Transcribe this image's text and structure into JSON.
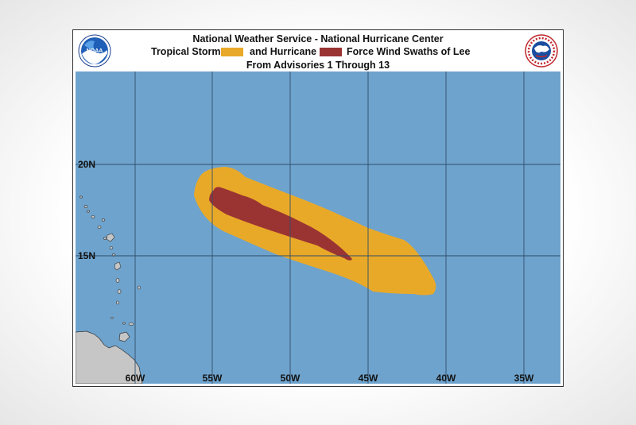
{
  "header": {
    "line1": "National Weather Service - National Hurricane Center",
    "legend_ts_label": "Tropical Storm",
    "legend_hu_label": "and Hurricane",
    "legend_suffix": "Force Wind Swaths of Lee",
    "line3": "From Advisories 1 Through 13"
  },
  "logos": {
    "left": {
      "icon": "noaa-logo",
      "text": "NOAA"
    },
    "right": {
      "icon": "nws-logo",
      "ring_text": "NATIONAL WEATHER SERVICE"
    }
  },
  "colors": {
    "ocean": "#6ea3cd",
    "land": "#c6c6c6",
    "grid": "#2f4e69",
    "tropical_storm": "#e9a928",
    "hurricane": "#9a3433"
  },
  "map": {
    "longitude_labels": [
      "60W",
      "55W",
      "50W",
      "45W",
      "40W",
      "35W"
    ],
    "latitude_labels": [
      "20N",
      "15N"
    ]
  }
}
